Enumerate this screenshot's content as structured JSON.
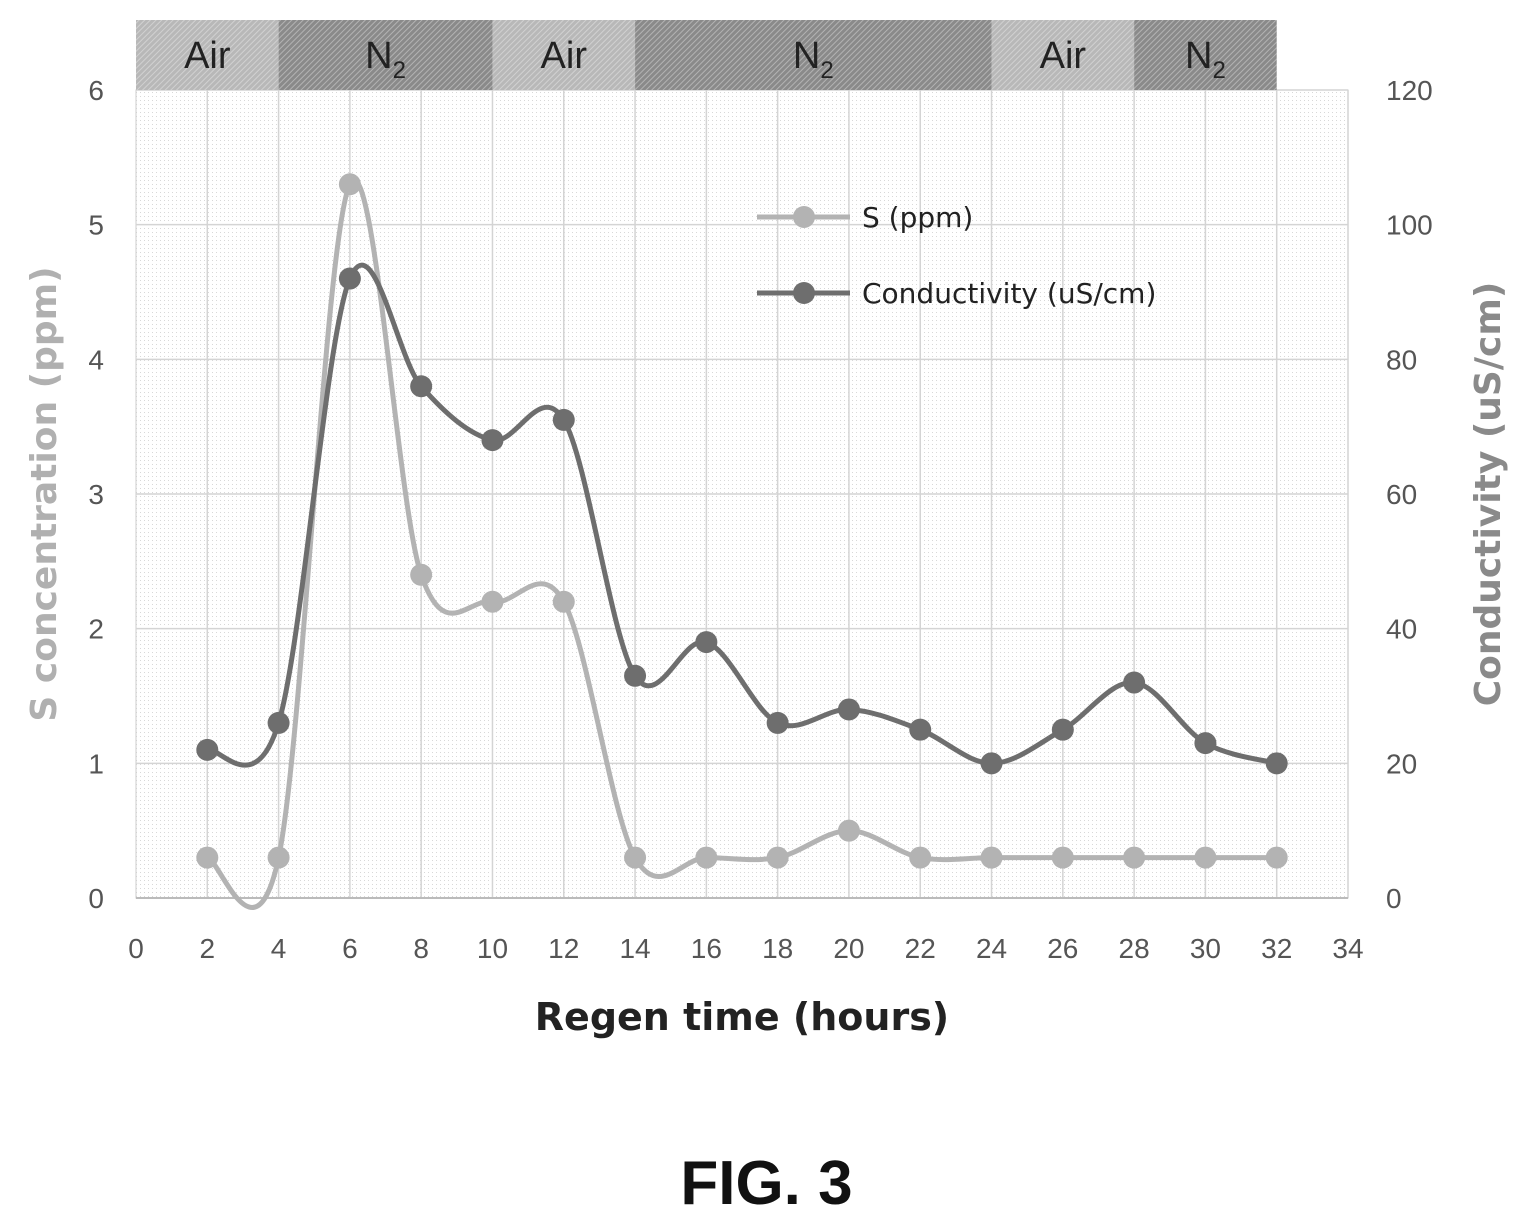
{
  "figure_label": "FIG. 3",
  "chart_data": {
    "type": "line",
    "xlabel": "Regen time  (hours)",
    "ylabel_left": "S concentration (ppm)",
    "ylabel_right": "Conductivity  (uS/cm)",
    "xlim": [
      0,
      34
    ],
    "ylim_left": [
      0,
      6
    ],
    "ylim_right": [
      0,
      120
    ],
    "x_ticks": [
      0,
      2,
      4,
      6,
      8,
      10,
      12,
      14,
      16,
      18,
      20,
      22,
      24,
      26,
      28,
      30,
      32,
      34
    ],
    "y_left_ticks": [
      0,
      1,
      2,
      3,
      4,
      5,
      6
    ],
    "y_right_ticks": [
      0,
      20,
      40,
      60,
      80,
      100,
      120
    ],
    "grid": true,
    "legend_position": "top-center",
    "gas_bands": [
      {
        "label": "Air",
        "sub": "",
        "x_start": 0,
        "x_end": 4,
        "color": "#b8b8b8"
      },
      {
        "label": "N",
        "sub": "2",
        "x_start": 4,
        "x_end": 10,
        "color": "#8a8a8a"
      },
      {
        "label": "Air",
        "sub": "",
        "x_start": 10,
        "x_end": 14,
        "color": "#b8b8b8"
      },
      {
        "label": "N",
        "sub": "2",
        "x_start": 14,
        "x_end": 24,
        "color": "#8a8a8a"
      },
      {
        "label": "Air",
        "sub": "",
        "x_start": 24,
        "x_end": 28,
        "color": "#b8b8b8"
      },
      {
        "label": "N",
        "sub": "2",
        "x_start": 28,
        "x_end": 32,
        "color": "#8a8a8a"
      }
    ],
    "x": [
      2,
      4,
      6,
      8,
      10,
      12,
      14,
      16,
      18,
      20,
      22,
      24,
      26,
      28,
      30,
      32
    ],
    "series": [
      {
        "name": "S (ppm)",
        "axis": "left",
        "color": "#b3b3b3",
        "values": [
          0.3,
          0.3,
          5.3,
          2.4,
          2.2,
          2.2,
          0.3,
          0.3,
          0.3,
          0.5,
          0.3,
          0.3,
          0.3,
          0.3,
          0.3,
          0.3
        ]
      },
      {
        "name": "Conductivity (uS/cm)",
        "axis": "right",
        "color": "#6e6e6e",
        "values": [
          22,
          26,
          92,
          76,
          68,
          71,
          33,
          38,
          26,
          28,
          25,
          20,
          25,
          32,
          23,
          20
        ]
      }
    ]
  }
}
